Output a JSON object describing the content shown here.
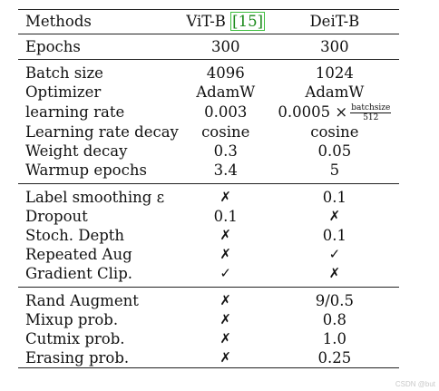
{
  "header": {
    "col1": "Methods",
    "col2_name": "ViT-B",
    "col2_cite": "[15]",
    "col3": "DeiT-B"
  },
  "epochs": {
    "label": "Epochs",
    "vit": "300",
    "deit": "300"
  },
  "optim_rows": [
    {
      "label": "Batch size",
      "vit": "4096",
      "deit": "1024"
    },
    {
      "label": "Optimizer",
      "vit": "AdamW",
      "deit": "AdamW"
    },
    {
      "label": "learning rate",
      "vit": "0.003",
      "deit_prefix": "0.0005 ×",
      "deit_num": "batchsize",
      "deit_den": "512"
    },
    {
      "label": "Learning rate decay",
      "vit": "cosine",
      "deit": "cosine"
    },
    {
      "label": "Weight decay",
      "vit": "0.3",
      "deit": "0.05"
    },
    {
      "label": "Warmup epochs",
      "vit": "3.4",
      "deit": "5"
    }
  ],
  "reg_rows": [
    {
      "label": "Label smoothing ε",
      "vit": "✗",
      "deit": "0.1"
    },
    {
      "label": "Dropout",
      "vit": "0.1",
      "deit": "✗"
    },
    {
      "label": "Stoch. Depth",
      "vit": "✗",
      "deit": "0.1"
    },
    {
      "label": "Repeated Aug",
      "vit": "✗",
      "deit": "✓"
    },
    {
      "label": "Gradient Clip.",
      "vit": "✓",
      "deit": "✗"
    }
  ],
  "aug_rows": [
    {
      "label": "Rand Augment",
      "vit": "✗",
      "deit": "9/0.5"
    },
    {
      "label": "Mixup prob.",
      "vit": "✗",
      "deit": "0.8"
    },
    {
      "label": "Cutmix prob.",
      "vit": "✗",
      "deit": "1.0"
    },
    {
      "label": "Erasing prob.",
      "vit": "✗",
      "deit": "0.25"
    }
  ],
  "watermark": "CSDN @but"
}
